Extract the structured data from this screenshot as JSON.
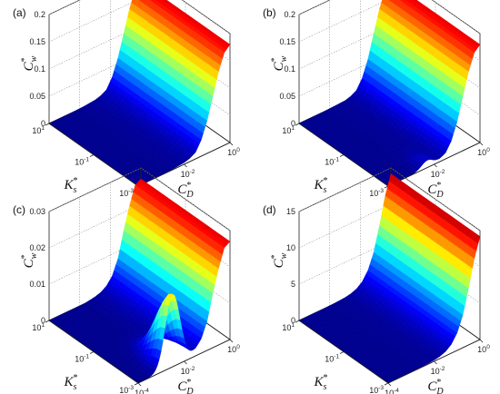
{
  "chart_data": [
    {
      "type": "surface3d",
      "panel_label": "(a)",
      "zlabel": "C*w",
      "xlabel": "K*s",
      "ylabel": "C*D",
      "ks_ticks": [
        "10^1",
        "10^-1",
        "10^-3"
      ],
      "cd_ticks": [
        "10^-4",
        "10^-2",
        "10^0"
      ],
      "z_ticks": [
        "0",
        "0.05",
        "0.1",
        "0.15",
        "0.2"
      ],
      "zlim": [
        0,
        0.2
      ],
      "ks_range_log10": [
        -3,
        1
      ],
      "cd_range_log10": [
        -4,
        0
      ],
      "cd_profile_log10": [
        -4,
        -3.5,
        -3,
        -2.5,
        -2,
        -1.75,
        -1.5,
        -1.25,
        -1,
        -0.75,
        -0.5,
        -0.25,
        0
      ],
      "z_profile": [
        0,
        0,
        0,
        0.001,
        0.003,
        0.006,
        0.012,
        0.03,
        0.06,
        0.1,
        0.14,
        0.17,
        0.18
      ],
      "ks_bump": null
    },
    {
      "type": "surface3d",
      "panel_label": "(b)",
      "zlabel": "C*w",
      "xlabel": "K*s",
      "ylabel": "C*D",
      "ks_ticks": [
        "10^1",
        "10^-1",
        "10^-3"
      ],
      "cd_ticks": [
        "10^-4",
        "10^-2",
        "10^0"
      ],
      "z_ticks": [
        "0",
        "0.05",
        "0.1",
        "0.15",
        "0.2"
      ],
      "zlim": [
        0,
        0.2
      ],
      "ks_range_log10": [
        -3,
        1
      ],
      "cd_range_log10": [
        -4,
        0
      ],
      "cd_profile_log10": [
        -4,
        -3.5,
        -3,
        -2.5,
        -2,
        -1.75,
        -1.5,
        -1.25,
        -1,
        -0.75,
        -0.5,
        -0.25,
        0
      ],
      "z_profile": [
        0,
        0,
        0,
        0.001,
        0.002,
        0.005,
        0.011,
        0.028,
        0.058,
        0.1,
        0.14,
        0.17,
        0.18
      ],
      "ks_bump": {
        "cd_center_log10": -2.3,
        "cd_width": 0.35,
        "amplitude": 0.012,
        "ks_center_log10": -3,
        "ks_width": 0.7
      }
    },
    {
      "type": "surface3d",
      "panel_label": "(c)",
      "zlabel": "C*w",
      "xlabel": "K*s",
      "ylabel": "C*D",
      "ks_ticks": [
        "10^1",
        "10^-1",
        "10^-3"
      ],
      "cd_ticks": [
        "10^-4",
        "10^-2",
        "10^0"
      ],
      "z_ticks": [
        "0",
        "0.01",
        "0.02",
        "0.03"
      ],
      "zlim": [
        0,
        0.03
      ],
      "ks_range_log10": [
        -3,
        1
      ],
      "cd_range_log10": [
        -4,
        0
      ],
      "cd_profile_log10": [
        -4,
        -3.5,
        -3,
        -2.5,
        -2,
        -1.75,
        -1.5,
        -1.25,
        -1,
        -0.75,
        -0.5,
        -0.25,
        0
      ],
      "z_profile": [
        0,
        0,
        0,
        0,
        0.0005,
        0.001,
        0.002,
        0.004,
        0.008,
        0.015,
        0.021,
        0.026,
        0.027
      ],
      "ks_bump": {
        "cd_center_log10": -2.5,
        "cd_width": 0.45,
        "amplitude": 0.02,
        "ks_center_log10": -3,
        "ks_width": 0.9
      }
    },
    {
      "type": "surface3d",
      "panel_label": "(d)",
      "zlabel": "C*w",
      "xlabel": "K*s",
      "ylabel": "C*D",
      "ks_ticks": [
        "10^1",
        "10^-1",
        "10^-3"
      ],
      "cd_ticks": [
        "10^-4",
        "10^-2",
        "10^0"
      ],
      "z_ticks": [
        "0",
        "5",
        "10",
        "15"
      ],
      "zlim": [
        0,
        15
      ],
      "ks_range_log10": [
        -3,
        1
      ],
      "cd_range_log10": [
        -4,
        0
      ],
      "cd_profile_log10": [
        -4,
        -3.5,
        -3,
        -2.5,
        -2,
        -1.75,
        -1.5,
        -1.25,
        -1,
        -0.75,
        -0.5,
        -0.25,
        0
      ],
      "z_profile": [
        0,
        0,
        0,
        0.05,
        0.15,
        0.3,
        0.6,
        1.2,
        2.4,
        4.5,
        7.8,
        11.5,
        14.2
      ],
      "ks_bump": null
    }
  ],
  "colormap": [
    "#00008f",
    "#0000ff",
    "#0080ff",
    "#00ffff",
    "#80ff80",
    "#ffff00",
    "#ff8000",
    "#ff0000",
    "#800000"
  ]
}
